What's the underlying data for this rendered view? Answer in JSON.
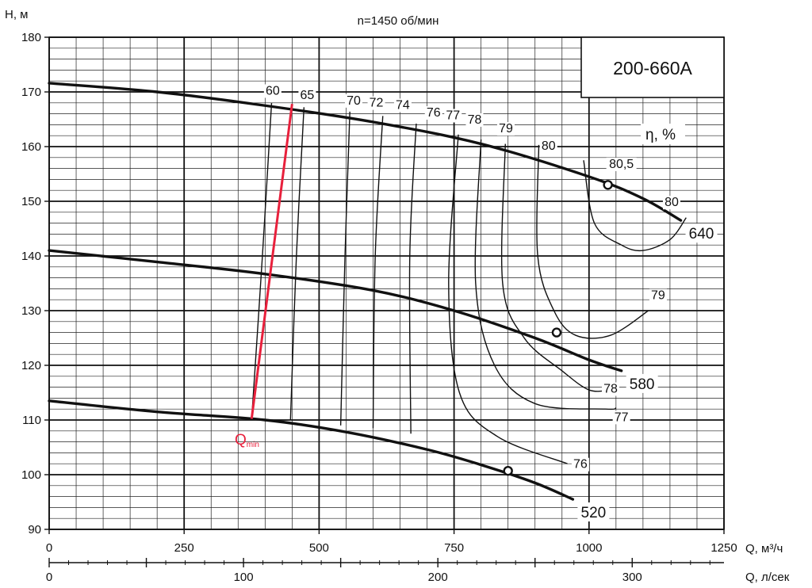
{
  "chart_data": {
    "type": "line",
    "title": "n=1450 об/мин",
    "model": "200-660A",
    "ylabel": "H, м",
    "xlabel": "Q, м³/ч",
    "x2label": "Q, л/сек",
    "eta_label": "η, %",
    "ylim": [
      90,
      180
    ],
    "xlim": [
      0,
      1250
    ],
    "yticks": [
      90,
      100,
      110,
      120,
      130,
      140,
      150,
      160,
      170,
      180
    ],
    "xticks": [
      0,
      250,
      500,
      750,
      1000,
      1250
    ],
    "x2ticks": [
      0,
      100,
      200,
      300
    ],
    "head_curves": [
      {
        "name": "640",
        "points": [
          [
            0,
            171.6
          ],
          [
            200,
            170.0
          ],
          [
            400,
            167.5
          ],
          [
            600,
            164.5
          ],
          [
            800,
            160.5
          ],
          [
            1000,
            154.5
          ],
          [
            1100,
            150.5
          ],
          [
            1170,
            146.5
          ]
        ]
      },
      {
        "name": "580",
        "points": [
          [
            0,
            141.0
          ],
          [
            200,
            138.9
          ],
          [
            400,
            136.7
          ],
          [
            600,
            133.7
          ],
          [
            750,
            130.0
          ],
          [
            900,
            125.0
          ],
          [
            1000,
            121.0
          ],
          [
            1060,
            119.0
          ]
        ]
      },
      {
        "name": "520",
        "points": [
          [
            0,
            113.5
          ],
          [
            200,
            111.5
          ],
          [
            400,
            110.0
          ],
          [
            550,
            107.8
          ],
          [
            700,
            104.6
          ],
          [
            800,
            101.8
          ],
          [
            900,
            98.5
          ],
          [
            970,
            95.5
          ]
        ]
      }
    ],
    "operating_points": [
      [
        1035,
        153.0
      ],
      [
        940,
        126.0
      ],
      [
        850,
        100.7
      ]
    ],
    "efficiency_lines": [
      {
        "label": "60",
        "points": [
          [
            412,
            168.0
          ],
          [
            395,
            140.0
          ],
          [
            375,
            110.0
          ]
        ]
      },
      {
        "label": "65",
        "points": [
          [
            472,
            167.2
          ],
          [
            458,
            140.0
          ],
          [
            447,
            110.0
          ]
        ]
      },
      {
        "label": "70",
        "points": [
          [
            557,
            166.4
          ],
          [
            548,
            140.0
          ],
          [
            540,
            109.0
          ]
        ]
      },
      {
        "label": "72",
        "points": [
          [
            618,
            165.6
          ],
          [
            604,
            140.0
          ],
          [
            600,
            108.5
          ]
        ]
      },
      {
        "label": "74",
        "points": [
          [
            680,
            164.2
          ],
          [
            668,
            140.0
          ],
          [
            670,
            107.5
          ]
        ]
      },
      {
        "label": "76",
        "points": [
          [
            758,
            162.2
          ],
          [
            740,
            135.0
          ],
          [
            760,
            115.0
          ],
          [
            830,
            107.0
          ],
          [
            960,
            102.0
          ]
        ]
      },
      {
        "label": "77",
        "points": [
          [
            800,
            161.3
          ],
          [
            790,
            135.0
          ],
          [
            825,
            120.0
          ],
          [
            900,
            113.0
          ],
          [
            1030,
            112.0
          ],
          [
            1050,
            112.2
          ]
        ]
      },
      {
        "label": "78",
        "points": [
          [
            845,
            160.5
          ],
          [
            840,
            135.0
          ],
          [
            880,
            125.0
          ],
          [
            950,
            119.0
          ],
          [
            1000,
            115.5
          ],
          [
            1040,
            115.5
          ]
        ]
      },
      {
        "label": "79",
        "points": [
          [
            907,
            160.3
          ],
          [
            905,
            140.0
          ],
          [
            935,
            130.0
          ],
          [
            975,
            125.5
          ],
          [
            1040,
            125.5
          ],
          [
            1110,
            130.0
          ]
        ]
      },
      {
        "label": "80",
        "points": [
          [
            990,
            157.5
          ],
          [
            1010,
            146.0
          ],
          [
            1060,
            142.0
          ],
          [
            1100,
            141.0
          ],
          [
            1150,
            143.0
          ],
          [
            1180,
            147.0
          ]
        ]
      }
    ],
    "eta_annotations": [
      {
        "label": "60",
        "at": [
          414,
          169.5
        ]
      },
      {
        "label": "65",
        "at": [
          478,
          168.7
        ]
      },
      {
        "label": "70",
        "at": [
          564,
          167.7
        ]
      },
      {
        "label": "72",
        "at": [
          606,
          167.3
        ]
      },
      {
        "label": "74",
        "at": [
          655,
          166.9
        ]
      },
      {
        "label": "76",
        "at": [
          712,
          165.5
        ]
      },
      {
        "label": "77",
        "at": [
          748,
          165.0
        ]
      },
      {
        "label": "78",
        "at": [
          788,
          164.2
        ]
      },
      {
        "label": "79",
        "at": [
          846,
          162.6
        ]
      },
      {
        "label": "80",
        "at": [
          925,
          159.4
        ]
      },
      {
        "label": "80,5",
        "at": [
          1060,
          156.1
        ]
      },
      {
        "label": "80",
        "at": [
          1153,
          149.1
        ]
      },
      {
        "label": "79",
        "at": [
          1128,
          132.1
        ]
      },
      {
        "label": "78",
        "at": [
          1040,
          115.0
        ]
      },
      {
        "label": "77",
        "at": [
          1060,
          109.8
        ]
      },
      {
        "label": "76",
        "at": [
          984,
          101.2
        ]
      }
    ],
    "qmin": {
      "label": "Q",
      "sub": "min",
      "points": [
        [
          375,
          110.2
        ],
        [
          450,
          167.8
        ]
      ]
    },
    "colors": {
      "curve": "#111111",
      "qmin": "#e8203c",
      "grid": "#111111"
    }
  }
}
